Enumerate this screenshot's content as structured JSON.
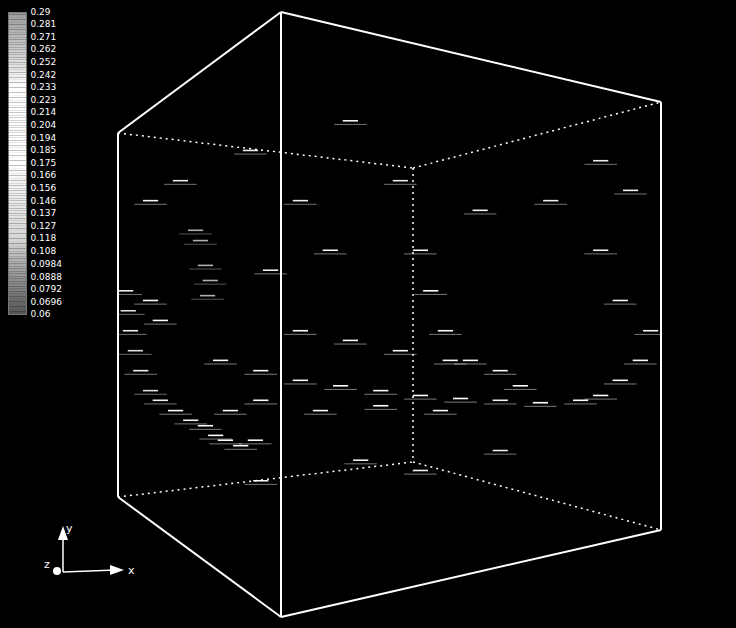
{
  "chart_data": {
    "type": "volume",
    "xlim": [
      0,
      1
    ],
    "ylim": [
      0,
      1
    ],
    "tick_labels": false,
    "colorbar": {
      "range": [
        0.06,
        0.29
      ],
      "ticks": [
        0.29,
        0.281,
        0.271,
        0.262,
        0.252,
        0.242,
        0.233,
        0.223,
        0.214,
        0.204,
        0.194,
        0.185,
        0.175,
        0.166,
        0.156,
        0.146,
        0.137,
        0.127,
        0.118,
        0.108,
        0.0984,
        0.0888,
        0.0792,
        0.0696,
        0.06
      ]
    },
    "axis_labels": {
      "x": "x",
      "y": "y",
      "z": "z"
    },
    "points": [
      [
        0.013,
        0.54,
        0.24
      ],
      [
        0.018,
        0.507,
        0.25
      ],
      [
        0.022,
        0.474,
        0.24
      ],
      [
        0.031,
        0.441,
        0.25
      ],
      [
        0.041,
        0.408,
        0.24
      ],
      [
        0.059,
        0.375,
        0.25
      ],
      [
        0.077,
        0.359,
        0.24
      ],
      [
        0.105,
        0.342,
        0.23
      ],
      [
        0.133,
        0.326,
        0.24
      ],
      [
        0.16,
        0.317,
        0.23
      ],
      [
        0.179,
        0.301,
        0.22
      ],
      [
        0.197,
        0.293,
        0.23
      ],
      [
        0.225,
        0.284,
        0.21
      ],
      [
        0.252,
        0.293,
        0.2
      ],
      [
        0.059,
        0.524,
        0.22
      ],
      [
        0.077,
        0.491,
        0.21
      ],
      [
        0.188,
        0.425,
        0.21
      ],
      [
        0.262,
        0.408,
        0.22
      ],
      [
        0.335,
        0.392,
        0.23
      ],
      [
        0.409,
        0.383,
        0.22
      ],
      [
        0.483,
        0.375,
        0.23
      ],
      [
        0.556,
        0.367,
        0.22
      ],
      [
        0.63,
        0.362,
        0.23
      ],
      [
        0.703,
        0.359,
        0.24
      ],
      [
        0.777,
        0.355,
        0.23
      ],
      [
        0.851,
        0.359,
        0.22
      ],
      [
        0.335,
        0.474,
        0.2
      ],
      [
        0.427,
        0.458,
        0.21
      ],
      [
        0.519,
        0.441,
        0.2
      ],
      [
        0.611,
        0.425,
        0.21
      ],
      [
        0.703,
        0.408,
        0.2
      ],
      [
        0.372,
        0.342,
        0.22
      ],
      [
        0.483,
        0.35,
        0.21
      ],
      [
        0.593,
        0.342,
        0.2
      ],
      [
        0.262,
        0.359,
        0.21
      ],
      [
        0.206,
        0.342,
        0.2
      ],
      [
        0.888,
        0.367,
        0.2
      ],
      [
        0.924,
        0.392,
        0.19
      ],
      [
        0.961,
        0.425,
        0.18
      ],
      [
        0.98,
        0.474,
        0.17
      ],
      [
        0.556,
        0.607,
        0.17
      ],
      [
        0.575,
        0.54,
        0.18
      ],
      [
        0.602,
        0.474,
        0.19
      ],
      [
        0.648,
        0.425,
        0.2
      ],
      [
        0.74,
        0.383,
        0.21
      ],
      [
        0.888,
        0.755,
        0.15
      ],
      [
        0.943,
        0.706,
        0.16
      ],
      [
        0.151,
        0.623,
        0.1
      ],
      [
        0.16,
        0.582,
        0.1
      ],
      [
        0.169,
        0.557,
        0.1
      ],
      [
        0.164,
        0.532,
        0.1
      ],
      [
        0.142,
        0.64,
        0.1
      ],
      [
        0.243,
        0.772,
        0.16
      ],
      [
        0.335,
        0.689,
        0.15
      ],
      [
        0.427,
        0.821,
        0.16
      ],
      [
        0.519,
        0.722,
        0.15
      ],
      [
        0.666,
        0.673,
        0.16
      ],
      [
        0.796,
        0.689,
        0.15
      ],
      [
        0.888,
        0.607,
        0.16
      ],
      [
        0.39,
        0.607,
        0.17
      ],
      [
        0.28,
        0.574,
        0.16
      ],
      [
        0.114,
        0.722,
        0.15
      ],
      [
        0.059,
        0.689,
        0.16
      ],
      [
        0.446,
        0.26,
        0.15
      ],
      [
        0.556,
        0.243,
        0.16
      ],
      [
        0.703,
        0.276,
        0.15
      ],
      [
        0.262,
        0.226,
        0.16
      ],
      [
        0.924,
        0.524,
        0.17
      ]
    ]
  }
}
